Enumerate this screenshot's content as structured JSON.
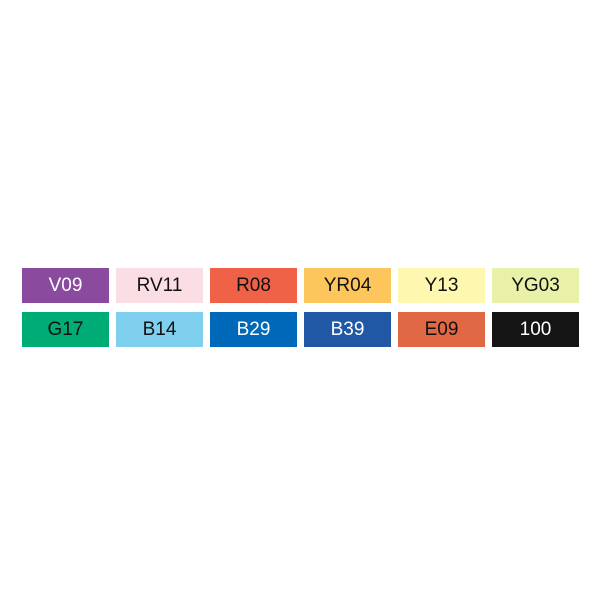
{
  "swatches": [
    {
      "code": "V09",
      "color": "#8a4a9e",
      "text_color": "#ffffff"
    },
    {
      "code": "RV11",
      "color": "#fbdde4",
      "text_color": "#111111"
    },
    {
      "code": "R08",
      "color": "#ef6248",
      "text_color": "#111111"
    },
    {
      "code": "YR04",
      "color": "#fdc65c",
      "text_color": "#111111"
    },
    {
      "code": "Y13",
      "color": "#fdf7b0",
      "text_color": "#111111"
    },
    {
      "code": "YG03",
      "color": "#e9f0a8",
      "text_color": "#111111"
    },
    {
      "code": "G17",
      "color": "#00ac76",
      "text_color": "#111111"
    },
    {
      "code": "B14",
      "color": "#7fcfee",
      "text_color": "#111111"
    },
    {
      "code": "B29",
      "color": "#0068b8",
      "text_color": "#ffffff"
    },
    {
      "code": "B39",
      "color": "#2158a6",
      "text_color": "#ffffff"
    },
    {
      "code": "E09",
      "color": "#e06844",
      "text_color": "#111111"
    },
    {
      "code": "100",
      "color": "#141414",
      "text_color": "#ffffff"
    }
  ]
}
